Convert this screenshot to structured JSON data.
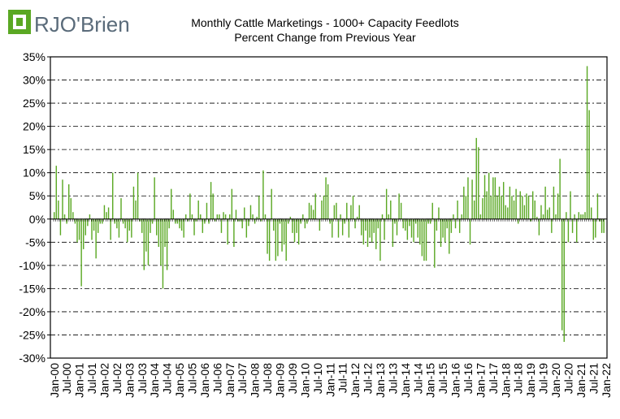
{
  "logo": {
    "text": "RJO'Brien"
  },
  "chart_data": {
    "type": "bar",
    "title": "Monthly Cattle Marketings  - 1000+ Capacity Feedlots",
    "subtitle": "Percent Change from Previous Year",
    "xlabel": "",
    "ylabel": "",
    "ylim": [
      -30,
      35
    ],
    "grid": true,
    "bar_color": "#5aa823",
    "start": "Jan-00",
    "yticks": [
      "35%",
      "30%",
      "25%",
      "20%",
      "15%",
      "10%",
      "5%",
      "0%",
      "-5%",
      "-10%",
      "-15%",
      "-20%",
      "-25%",
      "-30%"
    ],
    "ytick_values": [
      35,
      30,
      25,
      20,
      15,
      10,
      5,
      0,
      -5,
      -10,
      -15,
      -20,
      -25,
      -30
    ],
    "xticks": [
      "Jan-00",
      "Jul-00",
      "Jan-01",
      "Jul-01",
      "Jan-02",
      "Jul-02",
      "Jan-03",
      "Jul-03",
      "Jan-04",
      "Jul-04",
      "Jan-05",
      "Jul-05",
      "Jan-06",
      "Jul-06",
      "Jan-07",
      "Jul-07",
      "Jan-08",
      "Jul-08",
      "Jan-09",
      "Jul-09",
      "Jan-10",
      "Jul-10",
      "Jan-11",
      "Jul-11",
      "Jan-12",
      "Jul-12",
      "Jan-13",
      "Jul-13",
      "Jan-14",
      "Jul-14",
      "Jan-15",
      "Jul-15",
      "Jan-16",
      "Jul-16",
      "Jan-17",
      "Jul-17",
      "Jan-18",
      "Jul-18",
      "Jan-19",
      "Jul-19",
      "Jan-20",
      "Jul-20",
      "Jan-21",
      "Jul-21",
      "Jan-22"
    ],
    "values": [
      1.5,
      11.5,
      4,
      -3.5,
      8.5,
      1,
      -1,
      7.5,
      4.5,
      1.5,
      -1,
      -5,
      -4.5,
      -14.5,
      -6.5,
      -3.5,
      -1.5,
      1,
      -4.5,
      -2.5,
      -8.5,
      -3,
      -1,
      -1,
      3,
      1.5,
      2.5,
      -4.5,
      10,
      -1,
      -2,
      -4,
      4.5,
      -1,
      -2,
      -5,
      -2.5,
      -4,
      7,
      4,
      10,
      -0.5,
      -3,
      -11,
      -7,
      -10,
      -3,
      -1,
      9,
      -3.5,
      -6,
      -10,
      -15,
      -6,
      -11,
      -2,
      6.5,
      2,
      -1,
      -1,
      -2,
      -2.5,
      -4,
      1,
      -0.5,
      5.5,
      1,
      -3.5,
      -0.5,
      4,
      1,
      -3,
      -1,
      3.5,
      -1,
      8,
      5.5,
      -0.5,
      1,
      1,
      -3,
      1.5,
      1,
      -5.5,
      1,
      6.5,
      -6,
      2,
      -0.5,
      -0.5,
      -2,
      2.5,
      -4,
      -1.5,
      3,
      1,
      -1,
      0.5,
      5,
      -0.5,
      10.5,
      1,
      -7.5,
      -9,
      6.5,
      -2.5,
      -9,
      -8,
      -1,
      -7,
      -5.5,
      -9,
      -1,
      0.5,
      -3,
      -5,
      -3,
      -5.5,
      -1,
      1,
      -2,
      -1,
      3.5,
      3,
      2,
      5.5,
      0,
      -2.5,
      4,
      5,
      9,
      7.5,
      -1,
      -4,
      3,
      3.5,
      -4,
      1,
      -3.5,
      -1,
      3.5,
      -4,
      3,
      5,
      -2,
      0.5,
      3,
      -3.5,
      -5.5,
      -2.5,
      -6,
      -4,
      -5,
      -3,
      -6.5,
      -2,
      -9,
      1,
      -4.5,
      6.5,
      1,
      4,
      -6,
      -1,
      -3.5,
      5.5,
      3.5,
      -2,
      -2.5,
      -4.5,
      -1.5,
      -4,
      -5,
      -1,
      -4,
      -5.5,
      -8,
      -9,
      -9,
      -1,
      -1,
      3.5,
      -10.5,
      -2.5,
      2.5,
      -6,
      -4,
      -5,
      -2,
      -7.5,
      -3,
      1,
      -2,
      4,
      -3,
      1,
      7,
      5,
      9,
      -5.5,
      8.5,
      4,
      17.5,
      15.5,
      1,
      4.5,
      9.5,
      6,
      10,
      5,
      9,
      9,
      5,
      7,
      5,
      8,
      3,
      2.5,
      7,
      5,
      4,
      6.5,
      -1,
      6,
      5,
      3,
      5.5,
      5,
      -0.5,
      6,
      4,
      0.5,
      -3.5,
      3,
      1,
      7,
      2,
      2.5,
      -3,
      7,
      1,
      5.5,
      13,
      -24,
      -26.5,
      1.5,
      -5,
      6,
      -3,
      1,
      -5,
      1.5,
      1,
      1,
      1.5,
      33,
      23.5,
      2.5,
      -4.5,
      -4,
      5.5,
      -0.5,
      -3,
      -3
    ]
  }
}
